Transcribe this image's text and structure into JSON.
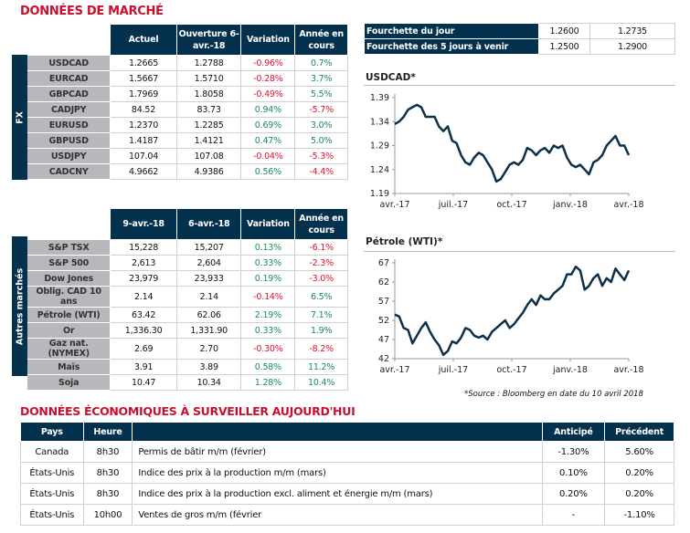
{
  "market_title": "DONNÉES DE MARCHÉ",
  "fx": {
    "side_label": "FX",
    "headers": [
      "Actuel",
      "Ouverture 6-avr.-18",
      "Variation",
      "Année en cours"
    ],
    "rows": [
      {
        "name": "USDCAD",
        "actuel": "1.2665",
        "ouverture": "1.2788",
        "variation": "-0.96%",
        "annee": "0.7%"
      },
      {
        "name": "EURCAD",
        "actuel": "1.5667",
        "ouverture": "1.5710",
        "variation": "-0.28%",
        "annee": "3.7%"
      },
      {
        "name": "GBPCAD",
        "actuel": "1.7969",
        "ouverture": "1.8058",
        "variation": "-0.49%",
        "annee": "5.5%"
      },
      {
        "name": "CADJPY",
        "actuel": "84.52",
        "ouverture": "83.73",
        "variation": "0.94%",
        "annee": "-5.7%"
      },
      {
        "name": "EURUSD",
        "actuel": "1.2370",
        "ouverture": "1.2285",
        "variation": "0.69%",
        "annee": "3.0%"
      },
      {
        "name": "GBPUSD",
        "actuel": "1.4187",
        "ouverture": "1.4121",
        "variation": "0.47%",
        "annee": "5.0%"
      },
      {
        "name": "USDJPY",
        "actuel": "107.04",
        "ouverture": "107.08",
        "variation": "-0.04%",
        "annee": "-5.3%"
      },
      {
        "name": "CADCNY",
        "actuel": "4.9662",
        "ouverture": "4.9386",
        "variation": "0.56%",
        "annee": "-4.4%"
      }
    ]
  },
  "other": {
    "side_label": "Autres marchés",
    "headers": [
      "9-avr.-18",
      "6-avr.-18",
      "Variation",
      "Année en cours"
    ],
    "rows": [
      {
        "name": "S&P TSX",
        "actuel": "15,228",
        "ouverture": "15,207",
        "variation": "0.13%",
        "annee": "-6.1%"
      },
      {
        "name": "S&P 500",
        "actuel": "2,613",
        "ouverture": "2,604",
        "variation": "0.33%",
        "annee": "-2.3%"
      },
      {
        "name": "Dow Jones",
        "actuel": "23,979",
        "ouverture": "23,933",
        "variation": "0.19%",
        "annee": "-3.0%"
      },
      {
        "name": "Oblig. CAD 10 ans",
        "actuel": "2.14",
        "ouverture": "2.14",
        "variation": "-0.14%",
        "annee": "6.5%"
      },
      {
        "name": "Pétrole (WTI)",
        "actuel": "63.42",
        "ouverture": "62.06",
        "variation": "2.19%",
        "annee": "7.1%"
      },
      {
        "name": "Or",
        "actuel": "1,336.30",
        "ouverture": "1,331.90",
        "variation": "0.33%",
        "annee": "1.9%"
      },
      {
        "name": "Gaz nat. (NYMEX)",
        "actuel": "2.69",
        "ouverture": "2.70",
        "variation": "-0.30%",
        "annee": "-8.2%"
      },
      {
        "name": "Maïs",
        "actuel": "3.91",
        "ouverture": "3.89",
        "variation": "0.58%",
        "annee": "11.2%"
      },
      {
        "name": "Soja",
        "actuel": "10.47",
        "ouverture": "10.34",
        "variation": "1.28%",
        "annee": "10.4%"
      }
    ]
  },
  "range": [
    {
      "label": "Fourchette du jour",
      "low": "1.2600",
      "high": "1.2735"
    },
    {
      "label": "Fourchette des 5 jours à venir",
      "low": "1.2500",
      "high": "1.2900"
    }
  ],
  "chart_data": [
    {
      "type": "line",
      "title": "USDCAD*",
      "xticks": [
        "avr.-17",
        "juil.-17",
        "oct.-17",
        "janv.-18",
        "avr.-18"
      ],
      "yticks": [
        "1.19",
        "1.24",
        "1.29",
        "1.34",
        "1.39"
      ],
      "ylim": [
        1.19,
        1.39
      ],
      "values": [
        1.335,
        1.34,
        1.35,
        1.365,
        1.37,
        1.375,
        1.37,
        1.35,
        1.35,
        1.35,
        1.33,
        1.32,
        1.33,
        1.3,
        1.295,
        1.27,
        1.255,
        1.25,
        1.265,
        1.275,
        1.27,
        1.255,
        1.24,
        1.215,
        1.22,
        1.235,
        1.25,
        1.255,
        1.25,
        1.26,
        1.285,
        1.28,
        1.27,
        1.28,
        1.285,
        1.275,
        1.29,
        1.285,
        1.29,
        1.265,
        1.25,
        1.245,
        1.25,
        1.24,
        1.23,
        1.255,
        1.26,
        1.27,
        1.29,
        1.3,
        1.31,
        1.29,
        1.29,
        1.27
      ]
    },
    {
      "type": "line",
      "title": "Pétrole (WTI)*",
      "xticks": [
        "avr.-17",
        "juil.-17",
        "oct.-17",
        "janv.-18",
        "avr.-18"
      ],
      "yticks": [
        "42",
        "47",
        "52",
        "57",
        "62",
        "67"
      ],
      "ylim": [
        42,
        67
      ],
      "values": [
        53.5,
        53,
        50,
        49.5,
        46,
        48,
        50,
        51.5,
        49,
        47,
        45.5,
        43,
        44,
        46.5,
        46,
        47.5,
        50,
        49.5,
        48,
        47.5,
        48,
        47,
        49,
        50,
        51,
        52,
        50,
        51,
        52.5,
        54,
        56,
        57.5,
        56,
        58.5,
        57.5,
        57.5,
        59,
        60,
        61,
        64,
        64,
        66,
        65,
        60,
        61,
        63,
        64,
        61,
        63,
        62,
        65.5,
        64,
        62.5,
        65
      ]
    }
  ],
  "source": "*Source : Bloomberg en date du  10 avril 2018",
  "eco": {
    "title": "DONNÉES ÉCONOMIQUES À SURVEILLER AUJOURD'HUI",
    "headers": [
      "Pays",
      "Heure",
      "",
      "Anticipé",
      "Précédent"
    ],
    "rows": [
      {
        "pays": "Canada",
        "heure": "8h30",
        "desc": "Permis de bâtir m/m (février)",
        "anticipe": "-1.30%",
        "precedent": "5.60%"
      },
      {
        "pays": "États-Unis",
        "heure": "8h30",
        "desc": "Indice des prix à la production m/m (mars)",
        "anticipe": "0.10%",
        "precedent": "0.20%"
      },
      {
        "pays": "États-Unis",
        "heure": "8h30",
        "desc": "Indice des prix à la production  excl. aliment et énergie m/m (mars)",
        "anticipe": "0.20%",
        "precedent": "0.20%"
      },
      {
        "pays": "États-Unis",
        "heure": "10h00",
        "desc": "Ventes de gros m/m (février",
        "anticipe": "-",
        "precedent": "-1.10%"
      }
    ]
  },
  "colors": {
    "navy": "#04314d",
    "red": "#c8102e",
    "neg": "#e0112b",
    "pos": "#1d8a5a"
  }
}
